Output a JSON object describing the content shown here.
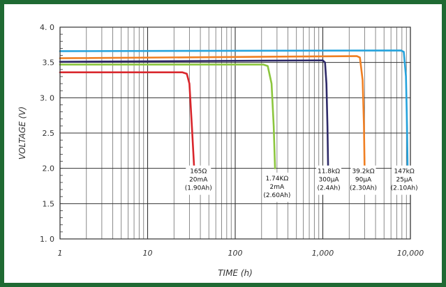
{
  "chart_data": {
    "type": "line",
    "title": "",
    "xlabel": "TIME (h)",
    "ylabel": "VOLTAGE (V)",
    "xscale": "log",
    "xlim": [
      1,
      10000
    ],
    "ylim": [
      1.0,
      4.0
    ],
    "grid": true,
    "x_tick_values": [
      1,
      10,
      100,
      1000,
      10000
    ],
    "x_tick_labels": [
      "1",
      "10",
      "100",
      "1,000",
      "10,000"
    ],
    "y_tick_values": [
      1.0,
      1.5,
      2.0,
      2.5,
      3.0,
      3.5,
      4.0
    ],
    "y_tick_labels": [
      "1. 0",
      "1.5",
      "2.0",
      "2.5",
      "3. 0",
      "3.5",
      "4. 0"
    ],
    "series": [
      {
        "color": "#d9262c",
        "points": [
          [
            1,
            3.36
          ],
          [
            25,
            3.36
          ],
          [
            28,
            3.34
          ],
          [
            30,
            3.2
          ],
          [
            32,
            2.6
          ],
          [
            34,
            2.0
          ]
        ],
        "label": [
          "165Ω",
          "20mA",
          "(1.90Ah)"
        ],
        "label_x": 38,
        "label_y": 2.02
      },
      {
        "color": "#8cc63e",
        "points": [
          [
            1,
            3.47
          ],
          [
            210,
            3.47
          ],
          [
            235,
            3.45
          ],
          [
            260,
            3.2
          ],
          [
            275,
            2.6
          ],
          [
            285,
            2.0
          ]
        ],
        "label": [
          "1.74KΩ",
          "2mA",
          "(2.60Ah)"
        ],
        "label_x": 300,
        "label_y": 1.92
      },
      {
        "color": "#2e2a68",
        "points": [
          [
            1,
            3.51
          ],
          [
            1000,
            3.53
          ],
          [
            1060,
            3.5
          ],
          [
            1100,
            3.2
          ],
          [
            1130,
            2.6
          ],
          [
            1150,
            2.0
          ]
        ],
        "label": [
          "11.8kΩ",
          "300µA",
          "(2.4Ah)"
        ],
        "label_x": 1170,
        "label_y": 2.02
      },
      {
        "color": "#f07f22",
        "points": [
          [
            1,
            3.56
          ],
          [
            2450,
            3.59
          ],
          [
            2650,
            3.57
          ],
          [
            2850,
            3.25
          ],
          [
            2950,
            2.6
          ],
          [
            3000,
            2.0
          ]
        ],
        "label": [
          "39.2kΩ",
          "90µA",
          "(2.30Ah)"
        ],
        "label_x": 2900,
        "label_y": 2.02
      },
      {
        "color": "#26a3dc",
        "points": [
          [
            1,
            3.66
          ],
          [
            7800,
            3.67
          ],
          [
            8400,
            3.65
          ],
          [
            8900,
            3.3
          ],
          [
            9150,
            2.6
          ],
          [
            9300,
            2.0
          ]
        ],
        "label": [
          "147kΩ",
          "25µA",
          "(2.10Ah)"
        ],
        "label_x": 8500,
        "label_y": 2.02
      }
    ]
  }
}
